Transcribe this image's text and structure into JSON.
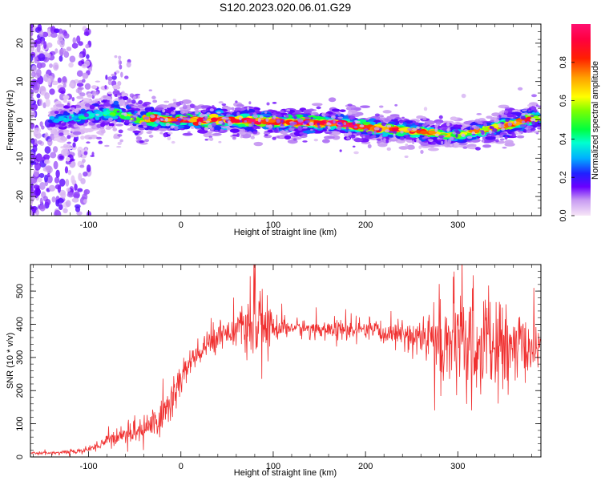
{
  "figure": {
    "title": "S120.2023.020.06.01.G29"
  },
  "chart_data": [
    {
      "type": "heatmap",
      "xlabel": "Height of straight line (km)",
      "ylabel": "Frequency (Hz)",
      "xlim": [
        -163,
        390
      ],
      "ylim": [
        -25,
        25
      ],
      "x_ticks": [
        -100,
        0,
        100,
        200,
        300
      ],
      "x_tick_labels": [
        "-100",
        "0",
        "100",
        "200",
        "300"
      ],
      "y_ticks": [
        -20,
        -10,
        0,
        10,
        20
      ],
      "y_tick_labels": [
        "-20",
        "-10",
        "0",
        "10",
        "20"
      ],
      "grid": false,
      "ridge": {
        "x": [
          -130,
          -100,
          -70,
          -45,
          -30,
          -10,
          50,
          100,
          150,
          170,
          200,
          230,
          260,
          285,
          300,
          320,
          340,
          360,
          375,
          390
        ],
        "frequency": [
          0,
          1,
          2,
          0,
          0.5,
          0,
          0,
          -0.5,
          -0.8,
          -1,
          -2,
          -2.5,
          -3,
          -4,
          -4,
          -3,
          -2,
          -1,
          0,
          0.5
        ],
        "peak_amplitude": [
          0.3,
          0.4,
          0.5,
          0.6,
          0.8,
          0.9,
          0.85,
          0.9,
          0.95,
          0.9,
          0.85,
          0.8,
          0.8,
          0.6,
          0.6,
          0.7,
          0.75,
          0.8,
          0.85,
          0.6
        ]
      },
      "colorbar": {
        "label": "Normalized spectral amplitude",
        "range": [
          0.0,
          1.0
        ],
        "ticks": [
          0.0,
          0.2,
          0.4,
          0.6,
          0.8
        ],
        "tick_labels": [
          "0.0",
          "0.2",
          "0.4",
          "0.6",
          "0.8"
        ],
        "stops": [
          {
            "value": 0.0,
            "color": "#f7e6f7"
          },
          {
            "value": 0.08,
            "color": "#c89cf2"
          },
          {
            "value": 0.15,
            "color": "#6a00ff"
          },
          {
            "value": 0.22,
            "color": "#2020ff"
          },
          {
            "value": 0.3,
            "color": "#00b0ff"
          },
          {
            "value": 0.38,
            "color": "#00ffd0"
          },
          {
            "value": 0.45,
            "color": "#00ff40"
          },
          {
            "value": 0.55,
            "color": "#80ff00"
          },
          {
            "value": 0.62,
            "color": "#ffff00"
          },
          {
            "value": 0.72,
            "color": "#ffa000"
          },
          {
            "value": 0.82,
            "color": "#ff2000"
          },
          {
            "value": 0.92,
            "color": "#ff0040"
          },
          {
            "value": 1.0,
            "color": "#ff1070"
          }
        ]
      }
    },
    {
      "type": "line",
      "xlabel": "Height of straight line (km)",
      "ylabel": "SNR (10 * v/v)",
      "xlim": [
        -163,
        390
      ],
      "ylim": [
        0,
        580
      ],
      "x_ticks": [
        -100,
        0,
        100,
        200,
        300
      ],
      "x_tick_labels": [
        "-100",
        "0",
        "100",
        "200",
        "300"
      ],
      "y_ticks": [
        0,
        100,
        200,
        300,
        400,
        500
      ],
      "y_tick_labels": [
        "0",
        "100",
        "200",
        "300",
        "400",
        "500"
      ],
      "grid": false,
      "series": [
        {
          "color": "#f03030",
          "trend": {
            "x": [
              -163,
              -140,
              -120,
              -100,
              -90,
              -80,
              -60,
              -40,
              -20,
              -10,
              0,
              10,
              20,
              30,
              40,
              60,
              70,
              80,
              90,
              100,
              120,
              150,
              200,
              240,
              260,
              280,
              300,
              320,
              340,
              360,
              380,
              390
            ],
            "mean": [
              12,
              12,
              15,
              22,
              35,
              50,
              70,
              85,
              120,
              170,
              240,
              280,
              310,
              340,
              370,
              385,
              390,
              400,
              395,
              390,
              390,
              385,
              380,
              370,
              360,
              350,
              340,
              335,
              330,
              325,
              330,
              340
            ],
            "spread": [
              4,
              4,
              6,
              8,
              15,
              20,
              25,
              40,
              60,
              70,
              60,
              50,
              40,
              40,
              40,
              45,
              60,
              120,
              90,
              40,
              25,
              25,
              30,
              35,
              60,
              120,
              150,
              160,
              140,
              110,
              70,
              50
            ]
          }
        }
      ]
    }
  ]
}
